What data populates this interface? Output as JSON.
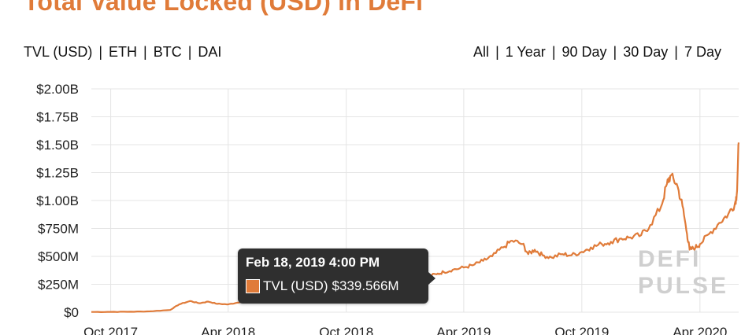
{
  "title": "Total Value Locked (USD) in DeFi",
  "metric_options": [
    {
      "label": "TVL (USD)",
      "active": true
    },
    {
      "label": "ETH",
      "active": false
    },
    {
      "label": "BTC",
      "active": false
    },
    {
      "label": "DAI",
      "active": false
    }
  ],
  "range_options": [
    {
      "label": "All",
      "active": true
    },
    {
      "label": "1 Year",
      "active": false
    },
    {
      "label": "90 Day",
      "active": false
    },
    {
      "label": "30 Day",
      "active": false
    },
    {
      "label": "7 Day",
      "active": false
    }
  ],
  "tooltip": {
    "date": "Feb 18, 2019 4:00 PM",
    "series_label": "TVL (USD)",
    "value": "$339.566M"
  },
  "watermark": {
    "line1": "DEFI",
    "line2": "PULSE"
  },
  "colors": {
    "accent": "#e07b39",
    "grid": "#e4e4e4",
    "tooltip_bg": "#2f2f2f"
  },
  "chart_data": {
    "type": "line",
    "title": "Total Value Locked (USD) in DeFi",
    "xlabel": "",
    "ylabel": "",
    "ylim": [
      0,
      2000000000
    ],
    "y_ticks": [
      0,
      250000000,
      500000000,
      750000000,
      1000000000,
      1250000000,
      1500000000,
      1750000000,
      2000000000
    ],
    "y_tick_labels": [
      "$0",
      "$250M",
      "$500M",
      "$750M",
      "$1.00B",
      "$1.25B",
      "$1.50B",
      "$1.75B",
      "$2.00B"
    ],
    "x_ticks": [
      "2017-10-01",
      "2018-04-01",
      "2018-10-01",
      "2019-04-01",
      "2019-10-01",
      "2020-04-01"
    ],
    "x_tick_labels": [
      "Oct 2017",
      "Apr 2018",
      "Oct 2018",
      "Apr 2019",
      "Oct 2019",
      "Apr 2020"
    ],
    "x_range": [
      "2017-09-01",
      "2020-05-31"
    ],
    "grid": true,
    "series": [
      {
        "name": "TVL (USD)",
        "color": "#e07b39",
        "points": [
          [
            "2017-09-01",
            2000000
          ],
          [
            "2017-10-01",
            3000000
          ],
          [
            "2017-11-01",
            4000000
          ],
          [
            "2017-12-01",
            8000000
          ],
          [
            "2018-01-01",
            20000000
          ],
          [
            "2018-01-15",
            70000000
          ],
          [
            "2018-02-01",
            100000000
          ],
          [
            "2018-02-15",
            80000000
          ],
          [
            "2018-03-01",
            95000000
          ],
          [
            "2018-03-15",
            75000000
          ],
          [
            "2018-04-01",
            70000000
          ],
          [
            "2018-04-15",
            85000000
          ],
          [
            "2018-05-01",
            110000000
          ],
          [
            "2018-05-15",
            140000000
          ],
          [
            "2018-06-01",
            160000000
          ],
          [
            "2018-06-15",
            175000000
          ],
          [
            "2018-07-01",
            200000000
          ],
          [
            "2018-07-15",
            220000000
          ],
          [
            "2018-08-01",
            230000000
          ],
          [
            "2018-08-15",
            240000000
          ],
          [
            "2018-09-01",
            250000000
          ],
          [
            "2018-10-01",
            270000000
          ],
          [
            "2018-11-01",
            300000000
          ],
          [
            "2018-11-15",
            280000000
          ],
          [
            "2018-12-01",
            260000000
          ],
          [
            "2018-12-15",
            270000000
          ],
          [
            "2019-01-01",
            290000000
          ],
          [
            "2019-01-15",
            310000000
          ],
          [
            "2019-02-01",
            320000000
          ],
          [
            "2019-02-18",
            339566000
          ],
          [
            "2019-03-01",
            360000000
          ],
          [
            "2019-03-15",
            380000000
          ],
          [
            "2019-04-01",
            400000000
          ],
          [
            "2019-04-15",
            420000000
          ],
          [
            "2019-05-01",
            460000000
          ],
          [
            "2019-05-15",
            500000000
          ],
          [
            "2019-06-01",
            580000000
          ],
          [
            "2019-06-15",
            640000000
          ],
          [
            "2019-07-01",
            610000000
          ],
          [
            "2019-07-10",
            520000000
          ],
          [
            "2019-07-20",
            560000000
          ],
          [
            "2019-08-01",
            510000000
          ],
          [
            "2019-08-15",
            490000000
          ],
          [
            "2019-09-01",
            520000000
          ],
          [
            "2019-09-15",
            510000000
          ],
          [
            "2019-10-01",
            540000000
          ],
          [
            "2019-10-15",
            580000000
          ],
          [
            "2019-11-01",
            610000000
          ],
          [
            "2019-11-15",
            630000000
          ],
          [
            "2019-12-01",
            660000000
          ],
          [
            "2019-12-15",
            670000000
          ],
          [
            "2020-01-01",
            690000000
          ],
          [
            "2020-01-15",
            780000000
          ],
          [
            "2020-02-01",
            950000000
          ],
          [
            "2020-02-10",
            1150000000
          ],
          [
            "2020-02-15",
            1220000000
          ],
          [
            "2020-02-25",
            1150000000
          ],
          [
            "2020-03-05",
            950000000
          ],
          [
            "2020-03-12",
            700000000
          ],
          [
            "2020-03-16",
            560000000
          ],
          [
            "2020-03-25",
            580000000
          ],
          [
            "2020-04-01",
            610000000
          ],
          [
            "2020-04-15",
            700000000
          ],
          [
            "2020-05-01",
            800000000
          ],
          [
            "2020-05-15",
            880000000
          ],
          [
            "2020-05-25",
            970000000
          ],
          [
            "2020-05-28",
            1050000000
          ],
          [
            "2020-05-31",
            1520000000
          ]
        ]
      }
    ],
    "highlight": {
      "x": "2019-02-18",
      "y": 339566000
    }
  }
}
